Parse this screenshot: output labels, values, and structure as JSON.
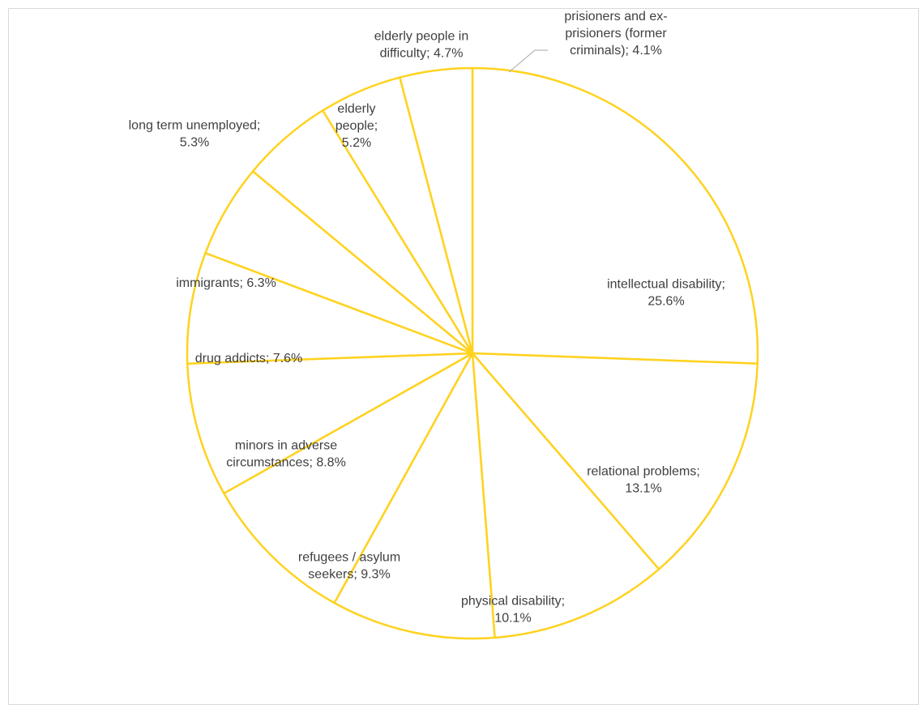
{
  "chart_data": {
    "type": "pie",
    "title": "",
    "slice_color": "#ffffff",
    "edge_color": "#ffd21f",
    "label_color": "#404040",
    "start_angle_deg": 0,
    "direction": "clockwise",
    "slices": [
      {
        "label_lines": [
          "intellectual disability;",
          "25.6%"
        ],
        "value": 25.6
      },
      {
        "label_lines": [
          "relational problems;",
          "13.1%"
        ],
        "value": 13.1
      },
      {
        "label_lines": [
          "physical disability;",
          "10.1%"
        ],
        "value": 10.1
      },
      {
        "label_lines": [
          "refugees / asylum",
          "seekers; 9.3%"
        ],
        "value": 9.3
      },
      {
        "label_lines": [
          "minors in adverse",
          "circumstances; 8.8%"
        ],
        "value": 8.8
      },
      {
        "label_lines": [
          "drug addicts; 7.6%"
        ],
        "value": 7.6
      },
      {
        "label_lines": [
          "immigrants; 6.3%"
        ],
        "value": 6.3
      },
      {
        "label_lines": [
          "long term unemployed;",
          "5.3%"
        ],
        "value": 5.3
      },
      {
        "label_lines": [
          "elderly",
          "people;",
          "5.2%"
        ],
        "value": 5.2
      },
      {
        "label_lines": [
          "elderly people in",
          "difficulty; 4.7%"
        ],
        "value": 4.7
      },
      {
        "label_lines": [
          "prisioners and ex-",
          "prisioners (former",
          "criminals); 4.1%"
        ],
        "value": 4.1
      }
    ]
  }
}
